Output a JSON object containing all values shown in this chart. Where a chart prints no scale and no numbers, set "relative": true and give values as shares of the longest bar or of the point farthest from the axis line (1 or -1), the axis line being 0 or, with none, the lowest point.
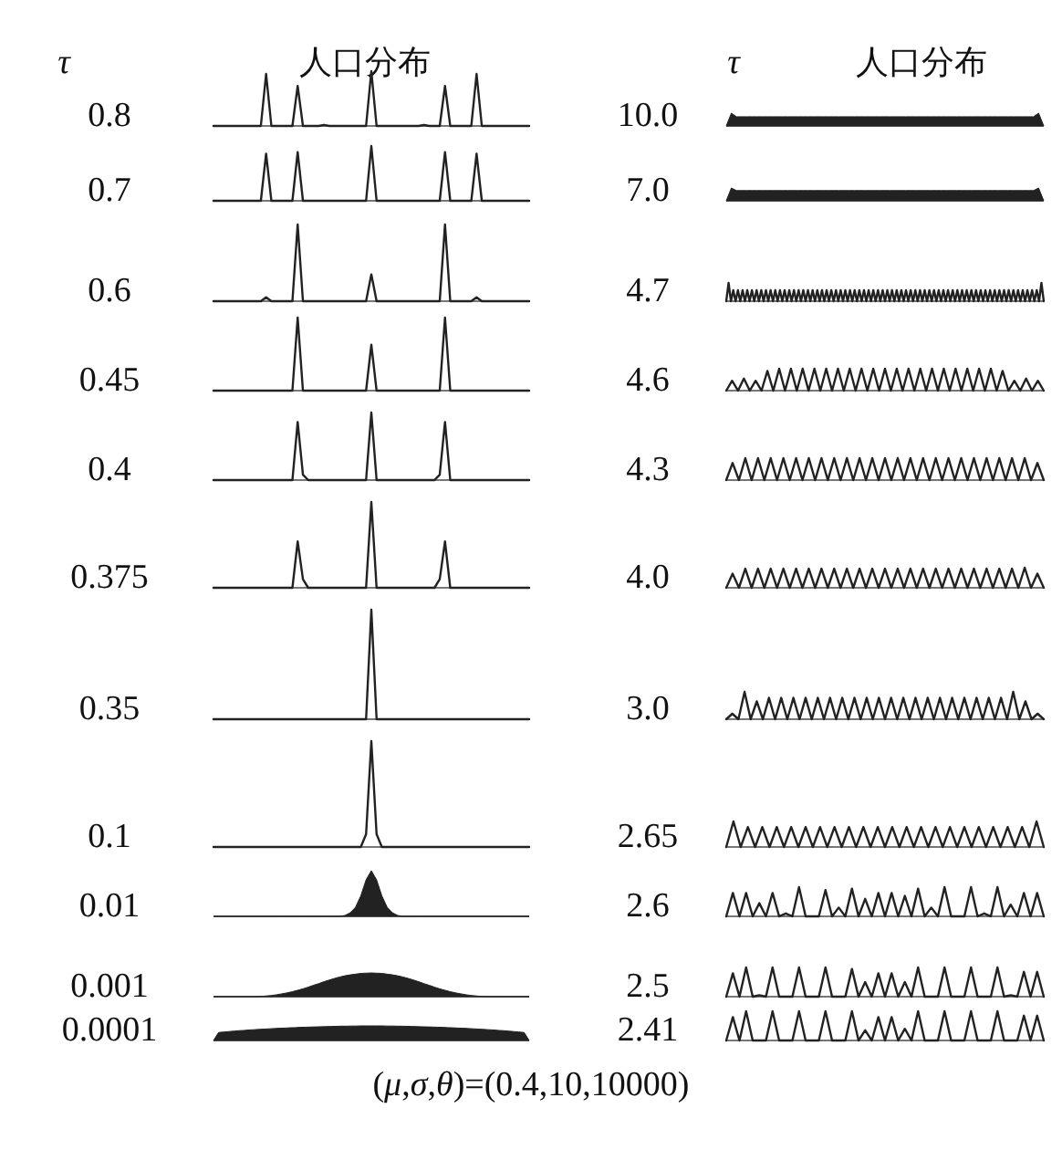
{
  "chart_data": [
    {
      "type": "line",
      "title": "0.8",
      "annotations": [
        "τ",
        "人口分布"
      ],
      "relative": true,
      "color": "#222222",
      "categories": [
        null,
        null,
        null,
        null,
        null,
        null,
        null,
        null,
        null,
        null,
        null,
        null,
        null,
        null,
        null,
        null,
        null,
        null,
        null,
        null,
        null,
        null,
        null,
        null,
        null,
        null,
        null,
        null,
        null,
        null,
        null,
        null,
        null,
        null,
        null,
        null,
        null,
        null,
        null,
        null,
        null,
        null,
        null,
        null,
        null,
        null,
        null,
        null,
        null,
        null,
        null,
        null,
        null,
        null,
        null,
        null,
        null,
        null,
        null,
        null,
        null
      ],
      "values": [
        0,
        0,
        0,
        0,
        0,
        0,
        0,
        0,
        0,
        0,
        0.95,
        0,
        0,
        0,
        0,
        0,
        0.73,
        0,
        0,
        0,
        0,
        0.02,
        0,
        0,
        0,
        0,
        0,
        0,
        0,
        0,
        1,
        0,
        0,
        0,
        0,
        0,
        0,
        0,
        0,
        0,
        0.02,
        0,
        0,
        0,
        0.73,
        0,
        0,
        0,
        0,
        0,
        0.95,
        0,
        0,
        0,
        0,
        0,
        0,
        0,
        0,
        0,
        0
      ]
    },
    {
      "type": "line",
      "title": "0.7",
      "relative": true,
      "color": "#222222",
      "categories": [
        null,
        null,
        null,
        null,
        null,
        null,
        null,
        null,
        null,
        null,
        null,
        null,
        null,
        null,
        null,
        null,
        null,
        null,
        null,
        null,
        null,
        null,
        null,
        null,
        null,
        null,
        null,
        null,
        null,
        null,
        null,
        null,
        null,
        null,
        null,
        null,
        null,
        null,
        null,
        null,
        null,
        null,
        null,
        null,
        null,
        null,
        null,
        null,
        null,
        null,
        null,
        null,
        null,
        null,
        null,
        null,
        null,
        null,
        null,
        null,
        null
      ],
      "values": [
        0,
        0,
        0,
        0,
        0,
        0,
        0,
        0,
        0,
        0,
        0.86,
        0,
        0,
        0,
        0,
        0,
        0.89,
        0,
        0,
        0,
        0,
        0,
        0,
        0,
        0,
        0,
        0,
        0,
        0,
        0,
        1,
        0,
        0,
        0,
        0,
        0,
        0,
        0,
        0,
        0,
        0,
        0,
        0,
        0,
        0.89,
        0,
        0,
        0,
        0,
        0,
        0.86,
        0,
        0,
        0,
        0,
        0,
        0,
        0,
        0,
        0,
        0
      ]
    },
    {
      "type": "line",
      "title": "0.6",
      "relative": true,
      "color": "#222222",
      "categories": [
        null,
        null,
        null,
        null,
        null,
        null,
        null,
        null,
        null,
        null,
        null,
        null,
        null,
        null,
        null,
        null,
        null,
        null,
        null,
        null,
        null,
        null,
        null,
        null,
        null,
        null,
        null,
        null,
        null,
        null,
        null,
        null,
        null,
        null,
        null,
        null,
        null,
        null,
        null,
        null,
        null,
        null,
        null,
        null,
        null,
        null,
        null,
        null,
        null,
        null,
        null,
        null,
        null,
        null,
        null,
        null,
        null,
        null,
        null,
        null,
        null
      ],
      "values": [
        0,
        0,
        0,
        0,
        0,
        0,
        0,
        0,
        0,
        0,
        0.05,
        0,
        0,
        0,
        0,
        0,
        1,
        0,
        0,
        0,
        0,
        0,
        0,
        0,
        0,
        0,
        0,
        0,
        0,
        0,
        0.35,
        0,
        0,
        0,
        0,
        0,
        0,
        0,
        0,
        0,
        0,
        0,
        0,
        0,
        1,
        0,
        0,
        0,
        0,
        0,
        0.05,
        0,
        0,
        0,
        0,
        0,
        0,
        0,
        0,
        0,
        0
      ]
    },
    {
      "type": "line",
      "title": "0.45",
      "relative": true,
      "color": "#222222",
      "categories": [
        null,
        null,
        null,
        null,
        null,
        null,
        null,
        null,
        null,
        null,
        null,
        null,
        null,
        null,
        null,
        null,
        null,
        null,
        null,
        null,
        null,
        null,
        null,
        null,
        null,
        null,
        null,
        null,
        null,
        null,
        null,
        null,
        null,
        null,
        null,
        null,
        null,
        null,
        null,
        null,
        null,
        null,
        null,
        null,
        null,
        null,
        null,
        null,
        null,
        null,
        null,
        null,
        null,
        null,
        null,
        null,
        null,
        null,
        null,
        null,
        null
      ],
      "values": [
        0,
        0,
        0,
        0,
        0,
        0,
        0,
        0,
        0,
        0,
        0,
        0,
        0,
        0,
        0,
        0,
        1,
        0,
        0,
        0,
        0,
        0,
        0,
        0,
        0,
        0,
        0,
        0,
        0,
        0,
        0.63,
        0,
        0,
        0,
        0,
        0,
        0,
        0,
        0,
        0,
        0,
        0,
        0,
        0,
        1,
        0,
        0,
        0,
        0,
        0,
        0,
        0,
        0,
        0,
        0,
        0,
        0,
        0,
        0,
        0,
        0
      ]
    },
    {
      "type": "line",
      "title": "0.4",
      "relative": true,
      "color": "#222222",
      "categories": [
        null,
        null,
        null,
        null,
        null,
        null,
        null,
        null,
        null,
        null,
        null,
        null,
        null,
        null,
        null,
        null,
        null,
        null,
        null,
        null,
        null,
        null,
        null,
        null,
        null,
        null,
        null,
        null,
        null,
        null,
        null,
        null,
        null,
        null,
        null,
        null,
        null,
        null,
        null,
        null,
        null,
        null,
        null,
        null,
        null,
        null,
        null,
        null,
        null,
        null,
        null,
        null,
        null,
        null,
        null,
        null,
        null,
        null,
        null,
        null,
        null
      ],
      "values": [
        0,
        0,
        0,
        0,
        0,
        0,
        0,
        0,
        0,
        0,
        0,
        0,
        0,
        0,
        0,
        0,
        0.86,
        0.08,
        0,
        0,
        0,
        0,
        0,
        0,
        0,
        0,
        0,
        0,
        0,
        0,
        1,
        0,
        0,
        0,
        0,
        0,
        0,
        0,
        0,
        0,
        0,
        0,
        0,
        0.08,
        0.86,
        0,
        0,
        0,
        0,
        0,
        0,
        0,
        0,
        0,
        0,
        0,
        0,
        0,
        0,
        0,
        0
      ]
    },
    {
      "type": "line",
      "title": "0.375",
      "relative": true,
      "color": "#222222",
      "categories": [
        null,
        null,
        null,
        null,
        null,
        null,
        null,
        null,
        null,
        null,
        null,
        null,
        null,
        null,
        null,
        null,
        null,
        null,
        null,
        null,
        null,
        null,
        null,
        null,
        null,
        null,
        null,
        null,
        null,
        null,
        null,
        null,
        null,
        null,
        null,
        null,
        null,
        null,
        null,
        null,
        null,
        null,
        null,
        null,
        null,
        null,
        null,
        null,
        null,
        null,
        null,
        null,
        null,
        null,
        null,
        null,
        null,
        null,
        null,
        null,
        null
      ],
      "values": [
        0,
        0,
        0,
        0,
        0,
        0,
        0,
        0,
        0,
        0,
        0,
        0,
        0,
        0,
        0,
        0,
        0.54,
        0.1,
        0,
        0,
        0,
        0,
        0,
        0,
        0,
        0,
        0,
        0,
        0,
        0,
        1,
        0,
        0,
        0,
        0,
        0,
        0,
        0,
        0,
        0,
        0,
        0,
        0,
        0.1,
        0.54,
        0,
        0,
        0,
        0,
        0,
        0,
        0,
        0,
        0,
        0,
        0,
        0,
        0,
        0,
        0,
        0
      ]
    },
    {
      "type": "line",
      "title": "0.35",
      "relative": true,
      "color": "#222222",
      "categories": [
        null,
        null,
        null,
        null,
        null,
        null,
        null,
        null,
        null,
        null,
        null,
        null,
        null,
        null,
        null,
        null,
        null,
        null,
        null,
        null,
        null,
        null,
        null,
        null,
        null,
        null,
        null,
        null,
        null,
        null,
        null,
        null,
        null,
        null,
        null,
        null,
        null,
        null,
        null,
        null,
        null,
        null,
        null,
        null,
        null,
        null,
        null,
        null,
        null,
        null,
        null,
        null,
        null,
        null,
        null,
        null,
        null,
        null,
        null,
        null,
        null
      ],
      "values": [
        0,
        0,
        0,
        0,
        0,
        0,
        0,
        0,
        0,
        0,
        0,
        0,
        0,
        0,
        0,
        0,
        0,
        0,
        0,
        0,
        0,
        0,
        0,
        0,
        0,
        0,
        0,
        0,
        0,
        0,
        1,
        0,
        0,
        0,
        0,
        0,
        0,
        0,
        0,
        0,
        0,
        0,
        0,
        0,
        0,
        0,
        0,
        0,
        0,
        0,
        0,
        0,
        0,
        0,
        0,
        0,
        0,
        0,
        0,
        0,
        0
      ]
    },
    {
      "type": "line",
      "title": "0.1",
      "relative": true,
      "color": "#222222",
      "categories": [
        null,
        null,
        null,
        null,
        null,
        null,
        null,
        null,
        null,
        null,
        null,
        null,
        null,
        null,
        null,
        null,
        null,
        null,
        null,
        null,
        null,
        null,
        null,
        null,
        null,
        null,
        null,
        null,
        null,
        null,
        null,
        null,
        null,
        null,
        null,
        null,
        null,
        null,
        null,
        null,
        null,
        null,
        null,
        null,
        null,
        null,
        null,
        null,
        null,
        null,
        null,
        null,
        null,
        null,
        null,
        null,
        null,
        null,
        null,
        null,
        null
      ],
      "values": [
        0,
        0,
        0,
        0,
        0,
        0,
        0,
        0,
        0,
        0,
        0,
        0,
        0,
        0,
        0,
        0,
        0,
        0,
        0,
        0,
        0,
        0,
        0,
        0,
        0,
        0,
        0,
        0,
        0,
        0.12,
        1,
        0.12,
        0,
        0,
        0,
        0,
        0,
        0,
        0,
        0,
        0,
        0,
        0,
        0,
        0,
        0,
        0,
        0,
        0,
        0,
        0,
        0,
        0,
        0,
        0,
        0,
        0,
        0,
        0,
        0,
        0
      ]
    },
    {
      "type": "area",
      "title": "0.01",
      "relative": true,
      "color": "#222222",
      "categories": [
        null,
        null,
        null,
        null,
        null,
        null,
        null,
        null,
        null,
        null,
        null,
        null,
        null,
        null,
        null,
        null,
        null,
        null,
        null,
        null,
        null,
        null,
        null,
        null,
        null,
        null,
        null,
        null,
        null,
        null,
        null,
        null,
        null,
        null,
        null,
        null,
        null,
        null,
        null,
        null,
        null,
        null,
        null,
        null,
        null,
        null,
        null,
        null,
        null,
        null,
        null,
        null,
        null,
        null,
        null,
        null,
        null,
        null,
        null,
        null,
        null
      ],
      "values": [
        0,
        0,
        0,
        0,
        0,
        0,
        0,
        0,
        0,
        0,
        0,
        0,
        0,
        0,
        0,
        0,
        0,
        0,
        0,
        0,
        0,
        0,
        0,
        0,
        0,
        0.02,
        0.08,
        0.2,
        0.45,
        0.8,
        1,
        0.8,
        0.45,
        0.2,
        0.08,
        0.02,
        0,
        0,
        0,
        0,
        0,
        0,
        0,
        0,
        0,
        0,
        0,
        0,
        0,
        0,
        0,
        0,
        0,
        0,
        0,
        0,
        0,
        0,
        0,
        0,
        0
      ]
    },
    {
      "type": "area",
      "title": "0.001",
      "relative": true,
      "color": "#222222",
      "categories": [
        null,
        null,
        null,
        null,
        null,
        null,
        null,
        null,
        null,
        null,
        null,
        null,
        null,
        null,
        null,
        null,
        null,
        null,
        null,
        null,
        null,
        null,
        null,
        null,
        null,
        null,
        null,
        null,
        null,
        null,
        null,
        null,
        null,
        null,
        null,
        null,
        null,
        null,
        null,
        null,
        null,
        null,
        null,
        null,
        null,
        null,
        null,
        null,
        null,
        null,
        null,
        null,
        null,
        null,
        null,
        null,
        null,
        null,
        null,
        null,
        null
      ],
      "values": [
        0,
        0,
        0,
        0,
        0,
        0,
        0,
        0,
        0,
        0.01,
        0.03,
        0.05,
        0.08,
        0.12,
        0.16,
        0.21,
        0.27,
        0.33,
        0.4,
        0.48,
        0.55,
        0.63,
        0.7,
        0.77,
        0.83,
        0.88,
        0.92,
        0.95,
        0.98,
        0.99,
        1,
        0.99,
        0.98,
        0.95,
        0.92,
        0.88,
        0.83,
        0.77,
        0.7,
        0.63,
        0.55,
        0.48,
        0.4,
        0.33,
        0.27,
        0.21,
        0.16,
        0.12,
        0.08,
        0.05,
        0.03,
        0.01,
        0,
        0,
        0,
        0,
        0,
        0,
        0,
        0,
        0
      ]
    },
    {
      "type": "area",
      "title": "0.0001",
      "relative": true,
      "color": "#222222",
      "categories": [
        null,
        null,
        null,
        null,
        null,
        null,
        null,
        null,
        null,
        null,
        null,
        null,
        null,
        null,
        null,
        null,
        null,
        null,
        null,
        null,
        null,
        null,
        null,
        null,
        null,
        null,
        null,
        null,
        null,
        null,
        null,
        null,
        null,
        null,
        null,
        null,
        null,
        null,
        null,
        null,
        null,
        null,
        null,
        null,
        null,
        null,
        null,
        null,
        null,
        null,
        null,
        null,
        null,
        null,
        null,
        null,
        null,
        null,
        null,
        null,
        null,
        null,
        null
      ],
      "values": [
        0,
        0.55,
        0.58,
        0.61,
        0.64,
        0.67,
        0.69,
        0.72,
        0.74,
        0.76,
        0.78,
        0.8,
        0.82,
        0.84,
        0.85,
        0.87,
        0.88,
        0.9,
        0.91,
        0.92,
        0.93,
        0.94,
        0.95,
        0.96,
        0.97,
        0.98,
        0.98,
        0.99,
        0.99,
        1,
        1,
        1,
        1,
        1,
        0.99,
        0.99,
        0.98,
        0.98,
        0.97,
        0.96,
        0.95,
        0.94,
        0.93,
        0.92,
        0.91,
        0.9,
        0.88,
        0.87,
        0.85,
        0.84,
        0.82,
        0.8,
        0.78,
        0.76,
        0.74,
        0.72,
        0.69,
        0.67,
        0.64,
        0.61,
        0.58,
        0.55,
        0
      ]
    },
    {
      "type": "area",
      "title": "10.0",
      "annotations": [
        "τ",
        "人口分布"
      ],
      "relative": true,
      "color": "#222222",
      "categories": [
        null,
        null,
        null,
        null,
        null,
        null,
        null,
        null,
        null,
        null,
        null,
        null,
        null,
        null,
        null,
        null,
        null,
        null,
        null,
        null,
        null,
        null,
        null,
        null,
        null,
        null,
        null,
        null,
        null,
        null,
        null,
        null,
        null,
        null,
        null,
        null,
        null,
        null,
        null,
        null,
        null,
        null,
        null,
        null,
        null,
        null,
        null,
        null,
        null,
        null,
        null,
        null,
        null,
        null,
        null,
        null,
        null,
        null,
        null,
        null,
        null,
        null,
        null
      ],
      "values": [
        0,
        1,
        0.72,
        0.72,
        0.72,
        0.72,
        0.72,
        0.72,
        0.72,
        0.72,
        0.72,
        0.72,
        0.72,
        0.72,
        0.72,
        0.72,
        0.72,
        0.72,
        0.72,
        0.72,
        0.72,
        0.72,
        0.72,
        0.72,
        0.72,
        0.72,
        0.72,
        0.72,
        0.72,
        0.72,
        0.72,
        0.72,
        0.72,
        0.72,
        0.72,
        0.72,
        0.72,
        0.72,
        0.72,
        0.72,
        0.72,
        0.72,
        0.72,
        0.72,
        0.72,
        0.72,
        0.72,
        0.72,
        0.72,
        0.72,
        0.72,
        0.72,
        0.72,
        0.72,
        0.72,
        0.72,
        0.72,
        0.72,
        0.72,
        0.72,
        0.72,
        1,
        0
      ]
    },
    {
      "type": "area",
      "title": "7.0",
      "relative": true,
      "color": "#222222",
      "categories": [
        null,
        null,
        null,
        null,
        null,
        null,
        null,
        null,
        null,
        null,
        null,
        null,
        null,
        null,
        null,
        null,
        null,
        null,
        null,
        null,
        null,
        null,
        null,
        null,
        null,
        null,
        null,
        null,
        null,
        null,
        null,
        null,
        null,
        null,
        null,
        null,
        null,
        null,
        null,
        null,
        null,
        null,
        null,
        null,
        null,
        null,
        null,
        null,
        null,
        null,
        null,
        null,
        null,
        null,
        null,
        null,
        null,
        null,
        null,
        null,
        null,
        null,
        null
      ],
      "values": [
        0,
        1,
        0.8,
        0.8,
        0.8,
        0.8,
        0.8,
        0.8,
        0.8,
        0.8,
        0.8,
        0.8,
        0.8,
        0.8,
        0.8,
        0.8,
        0.8,
        0.8,
        0.8,
        0.8,
        0.8,
        0.8,
        0.8,
        0.8,
        0.8,
        0.8,
        0.8,
        0.8,
        0.8,
        0.8,
        0.8,
        0.8,
        0.8,
        0.8,
        0.8,
        0.8,
        0.8,
        0.8,
        0.8,
        0.8,
        0.8,
        0.8,
        0.8,
        0.8,
        0.8,
        0.8,
        0.8,
        0.8,
        0.8,
        0.8,
        0.8,
        0.8,
        0.8,
        0.8,
        0.8,
        0.8,
        0.8,
        0.8,
        0.8,
        0.8,
        0.8,
        1,
        0
      ]
    },
    {
      "type": "line",
      "title": "4.7",
      "relative": true,
      "color": "#222222",
      "categories": [
        null,
        null,
        null,
        null,
        null,
        null,
        null,
        null,
        null,
        null,
        null,
        null,
        null,
        null,
        null,
        null,
        null,
        null,
        null,
        null,
        null,
        null,
        null,
        null,
        null,
        null,
        null,
        null,
        null,
        null,
        null,
        null,
        null,
        null,
        null,
        null,
        null,
        null,
        null,
        null,
        null,
        null,
        null,
        null,
        null,
        null,
        null,
        null,
        null,
        null,
        null,
        null,
        null,
        null,
        null,
        null,
        null,
        null,
        null,
        null,
        null,
        null,
        null,
        null,
        null,
        null,
        null,
        null,
        null,
        null,
        null,
        null,
        null,
        null,
        null,
        null,
        null,
        null,
        null,
        null,
        null,
        null,
        null,
        null,
        null,
        null,
        null,
        null,
        null,
        null,
        null,
        null,
        null,
        null,
        null,
        null,
        null,
        null,
        null,
        null,
        null,
        null,
        null,
        null,
        null,
        null,
        null,
        null,
        null,
        null,
        null,
        null,
        null,
        null,
        null,
        null,
        null,
        null,
        null,
        null,
        null,
        null,
        null,
        null,
        null,
        null,
        null,
        null,
        null,
        null,
        null,
        null,
        null,
        null,
        null,
        null,
        null
      ],
      "values": [
        0,
        1,
        0,
        0.6,
        0,
        0.6,
        0,
        0.6,
        0,
        0.6,
        0,
        0.6,
        0,
        0.6,
        0,
        0.6,
        0,
        0.6,
        0,
        0.6,
        0,
        0.6,
        0,
        0.6,
        0,
        0.6,
        0,
        0.6,
        0,
        0.6,
        0,
        0.6,
        0,
        0.6,
        0,
        0.6,
        0,
        0.6,
        0,
        0.6,
        0,
        0.6,
        0,
        0.6,
        0,
        0.6,
        0,
        0.6,
        0,
        0.6,
        0,
        0.6,
        0,
        0.6,
        0,
        0.6,
        0,
        0.6,
        0,
        0.6,
        0,
        0.6,
        0,
        0.6,
        0,
        0.6,
        0,
        0.6,
        0,
        0.6,
        0,
        0.6,
        0,
        0.6,
        0,
        0.6,
        0,
        0.6,
        0,
        0.6,
        0,
        0.6,
        0,
        0.6,
        0,
        0.6,
        0,
        0.6,
        0,
        0.6,
        0,
        0.6,
        0,
        0.6,
        0,
        0.6,
        0,
        0.6,
        0,
        0.6,
        0,
        0.6,
        0,
        0.6,
        0,
        0.6,
        0,
        0.6,
        0,
        0.6,
        0,
        0.6,
        0,
        0.6,
        0,
        0.6,
        0,
        0.6,
        0,
        0.6,
        0,
        0.6,
        0,
        0.6,
        0,
        0.6,
        0,
        0.6,
        0,
        0.6,
        0,
        0.6,
        0,
        0.6,
        0,
        1,
        0
      ]
    },
    {
      "type": "line",
      "title": "4.6",
      "relative": true,
      "color": "#222222",
      "categories": [
        null,
        null,
        null,
        null,
        null,
        null,
        null,
        null,
        null,
        null,
        null,
        null,
        null,
        null,
        null,
        null,
        null,
        null,
        null,
        null,
        null,
        null,
        null,
        null,
        null,
        null,
        null,
        null,
        null,
        null,
        null,
        null,
        null,
        null,
        null,
        null,
        null,
        null,
        null,
        null,
        null,
        null,
        null,
        null,
        null,
        null,
        null,
        null,
        null,
        null,
        null,
        null,
        null,
        null,
        null
      ],
      "values": [
        0,
        0.45,
        0,
        0.55,
        0,
        0.45,
        0,
        0.9,
        0,
        1,
        0,
        1,
        0,
        1,
        0,
        1,
        0,
        1,
        0,
        1,
        0,
        1,
        0,
        1,
        0,
        1,
        0,
        1,
        0,
        1,
        0,
        1,
        0,
        1,
        0,
        1,
        0,
        1,
        0,
        1,
        0,
        1,
        0,
        1,
        0,
        1,
        0,
        0.9,
        0,
        0.45,
        0,
        0.55,
        0,
        0.45,
        0
      ]
    },
    {
      "type": "line",
      "title": "4.3",
      "relative": true,
      "color": "#222222",
      "categories": [
        null,
        null,
        null,
        null,
        null,
        null,
        null,
        null,
        null,
        null,
        null,
        null,
        null,
        null,
        null,
        null,
        null,
        null,
        null,
        null,
        null,
        null,
        null,
        null,
        null,
        null,
        null,
        null,
        null,
        null,
        null,
        null,
        null,
        null,
        null,
        null,
        null,
        null,
        null,
        null,
        null,
        null,
        null,
        null,
        null,
        null,
        null,
        null,
        null,
        null,
        null
      ],
      "values": [
        0,
        0.78,
        0,
        1,
        0,
        1,
        0,
        1,
        0,
        1,
        0,
        1,
        0,
        1,
        0,
        1,
        0,
        1,
        0,
        1,
        0,
        1,
        0,
        1,
        0,
        1,
        0,
        1,
        0,
        1,
        0,
        1,
        0,
        1,
        0,
        1,
        0,
        1,
        0,
        1,
        0,
        1,
        0,
        1,
        0,
        1,
        0,
        1,
        0,
        0.78,
        0
      ]
    },
    {
      "type": "line",
      "title": "4.0",
      "relative": true,
      "color": "#222222",
      "categories": [
        null,
        null,
        null,
        null,
        null,
        null,
        null,
        null,
        null,
        null,
        null,
        null,
        null,
        null,
        null,
        null,
        null,
        null,
        null,
        null,
        null,
        null,
        null,
        null,
        null,
        null,
        null,
        null,
        null,
        null,
        null,
        null,
        null,
        null,
        null,
        null,
        null,
        null,
        null,
        null,
        null,
        null,
        null,
        null,
        null,
        null,
        null,
        null,
        null,
        null,
        null
      ],
      "values": [
        0,
        0.7,
        0,
        0.95,
        0,
        0.95,
        0,
        0.95,
        0,
        0.95,
        0,
        0.95,
        0,
        0.95,
        0,
        0.95,
        0,
        0.95,
        0,
        0.95,
        0,
        0.95,
        0,
        0.95,
        0,
        0.95,
        0,
        0.95,
        0,
        0.95,
        0,
        0.95,
        0,
        0.95,
        0,
        0.95,
        0,
        0.95,
        0,
        0.95,
        0,
        0.95,
        0,
        0.95,
        0,
        0.95,
        0,
        1,
        0,
        0.7,
        0
      ]
    },
    {
      "type": "line",
      "title": "3.0",
      "relative": true,
      "color": "#222222",
      "categories": [
        null,
        null,
        null,
        null,
        null,
        null,
        null,
        null,
        null,
        null,
        null,
        null,
        null,
        null,
        null,
        null,
        null,
        null,
        null,
        null,
        null,
        null,
        null,
        null,
        null,
        null,
        null,
        null,
        null,
        null,
        null,
        null,
        null,
        null,
        null,
        null,
        null,
        null,
        null,
        null,
        null,
        null,
        null,
        null,
        null,
        null,
        null,
        null,
        null,
        null,
        null,
        null,
        null
      ],
      "values": [
        0,
        0.2,
        0,
        1,
        0,
        0.65,
        0,
        0.78,
        0,
        0.78,
        0,
        0.78,
        0,
        0.78,
        0,
        0.78,
        0,
        0.78,
        0,
        0.78,
        0,
        0.78,
        0,
        0.78,
        0,
        0.78,
        0,
        0.78,
        0,
        0.78,
        0,
        0.78,
        0,
        0.78,
        0,
        0.78,
        0,
        0.78,
        0,
        0.78,
        0,
        0.78,
        0,
        0.78,
        0,
        0.78,
        0,
        1,
        0,
        0.65,
        0,
        0.2,
        0
      ]
    },
    {
      "type": "line",
      "title": "2.65",
      "relative": true,
      "color": "#222222",
      "categories": [
        null,
        null,
        null,
        null,
        null,
        null,
        null,
        null,
        null,
        null,
        null,
        null,
        null,
        null,
        null,
        null,
        null,
        null,
        null,
        null,
        null,
        null,
        null,
        null,
        null,
        null,
        null,
        null,
        null,
        null,
        null,
        null,
        null,
        null,
        null,
        null,
        null,
        null,
        null,
        null,
        null,
        null,
        null,
        null,
        null
      ],
      "values": [
        0,
        1,
        0,
        0.78,
        0,
        0.78,
        0,
        0.78,
        0,
        0.78,
        0,
        0.78,
        0,
        0.78,
        0,
        0.78,
        0,
        0.78,
        0,
        0.78,
        0,
        0.78,
        0,
        0.78,
        0,
        0.78,
        0,
        0.78,
        0,
        0.78,
        0,
        0.78,
        0,
        0.78,
        0,
        0.78,
        0,
        0.78,
        0,
        0.78,
        0,
        0.78,
        0,
        1,
        0
      ]
    },
    {
      "type": "line",
      "title": "2.6",
      "relative": true,
      "color": "#222222",
      "categories": [
        null,
        null,
        null,
        null,
        null,
        null,
        null,
        null,
        null,
        null,
        null,
        null,
        null,
        null,
        null,
        null,
        null,
        null,
        null,
        null,
        null,
        null,
        null,
        null,
        null,
        null,
        null,
        null,
        null,
        null,
        null,
        null,
        null,
        null,
        null,
        null,
        null,
        null,
        null,
        null,
        null,
        null,
        null,
        null,
        null,
        null,
        null,
        null,
        null
      ],
      "values": [
        0,
        0.8,
        0,
        0.8,
        0,
        0.45,
        0,
        0.8,
        0,
        0.1,
        0,
        1,
        0,
        0,
        0,
        0.9,
        0,
        0.3,
        0,
        0.95,
        0,
        0.6,
        0,
        0.8,
        0,
        0.8,
        0,
        0.7,
        0,
        0.95,
        0,
        0.3,
        0,
        1,
        0,
        0,
        0,
        1,
        0,
        0.1,
        0,
        1,
        0,
        0.4,
        0,
        0.8,
        0,
        0.8,
        0
      ]
    },
    {
      "type": "line",
      "title": "2.5",
      "relative": true,
      "color": "#222222",
      "categories": [
        null,
        null,
        null,
        null,
        null,
        null,
        null,
        null,
        null,
        null,
        null,
        null,
        null,
        null,
        null,
        null,
        null,
        null,
        null,
        null,
        null,
        null,
        null,
        null,
        null,
        null,
        null,
        null,
        null,
        null,
        null,
        null,
        null,
        null,
        null,
        null,
        null,
        null,
        null,
        null,
        null,
        null,
        null,
        null,
        null,
        null,
        null,
        null,
        null
      ],
      "values": [
        0,
        0.8,
        0,
        1,
        0,
        0.05,
        0,
        1,
        0,
        0,
        0,
        1,
        0,
        0,
        0,
        1,
        0,
        0,
        0,
        0.95,
        0,
        0.5,
        0,
        0.8,
        0,
        0.8,
        0,
        0.5,
        0,
        1,
        0,
        0,
        0,
        1,
        0,
        0,
        0,
        1,
        0,
        0,
        0,
        1,
        0,
        0.05,
        0,
        0.85,
        0,
        0.85,
        0
      ]
    },
    {
      "type": "line",
      "title": "2.41",
      "relative": true,
      "color": "#222222",
      "categories": [
        null,
        null,
        null,
        null,
        null,
        null,
        null,
        null,
        null,
        null,
        null,
        null,
        null,
        null,
        null,
        null,
        null,
        null,
        null,
        null,
        null,
        null,
        null,
        null,
        null,
        null,
        null,
        null,
        null,
        null,
        null,
        null,
        null,
        null,
        null,
        null,
        null,
        null,
        null,
        null,
        null,
        null,
        null,
        null,
        null,
        null,
        null,
        null,
        null
      ],
      "values": [
        0,
        0.8,
        0,
        1,
        0,
        0,
        0,
        1,
        0,
        0,
        0,
        1,
        0,
        0,
        0,
        1,
        0,
        0,
        0,
        1,
        0,
        0.35,
        0,
        0.8,
        0,
        0.8,
        0,
        0.4,
        0,
        1,
        0,
        0,
        0,
        1,
        0,
        0,
        0,
        1,
        0,
        0,
        0,
        1,
        0,
        0,
        0,
        0.85,
        0,
        0.85,
        0
      ]
    },
    {
      "type": "other",
      "annotations": [
        "(*μ*,*σ*,*θ*)=(0.4,10,10000)"
      ]
    }
  ]
}
